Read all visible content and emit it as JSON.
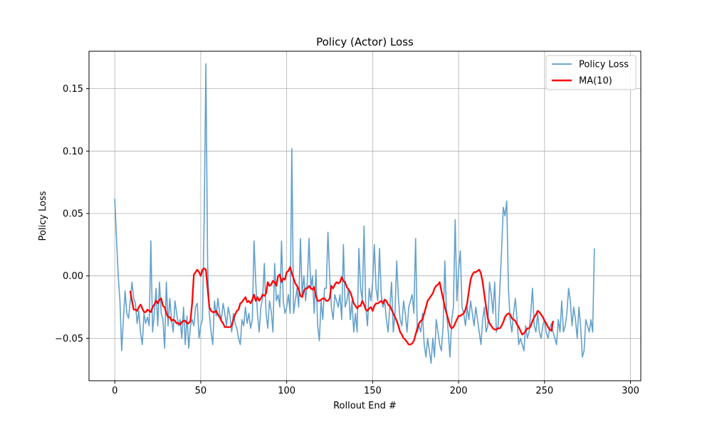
{
  "chart_data": {
    "type": "line",
    "title": "Policy (Actor) Loss",
    "xlabel": "Rollout End #",
    "ylabel": "Policy Loss",
    "xlim": [
      -15,
      306
    ],
    "ylim": [
      -0.084,
      0.18
    ],
    "xticks": [
      0,
      50,
      100,
      150,
      200,
      250,
      300
    ],
    "xtick_labels": [
      "0",
      "50",
      "100",
      "150",
      "200",
      "250",
      "300"
    ],
    "yticks": [
      -0.05,
      0.0,
      0.05,
      0.1,
      0.15
    ],
    "ytick_labels": [
      "−0.05",
      "0.00",
      "0.05",
      "0.10",
      "0.15"
    ],
    "grid": true,
    "legend_position": "top-right",
    "series": [
      {
        "name": "Policy Loss",
        "color": "#5b9bc9",
        "x_start": 0,
        "x_step": 1,
        "values": [
          0.062,
          0.03,
          0.0,
          -0.02,
          -0.06,
          -0.035,
          -0.012,
          -0.03,
          -0.034,
          -0.02,
          -0.005,
          -0.018,
          -0.022,
          -0.038,
          -0.028,
          -0.046,
          -0.055,
          -0.03,
          -0.038,
          -0.033,
          -0.04,
          0.028,
          -0.045,
          -0.03,
          -0.01,
          -0.04,
          -0.005,
          -0.03,
          -0.035,
          -0.058,
          -0.005,
          -0.04,
          -0.018,
          -0.035,
          -0.045,
          -0.02,
          -0.03,
          -0.04,
          -0.035,
          -0.05,
          -0.025,
          -0.055,
          -0.032,
          -0.058,
          -0.04,
          -0.035,
          -0.04,
          -0.025,
          -0.022,
          -0.05,
          -0.04,
          -0.035,
          0.045,
          0.17,
          0.01,
          -0.03,
          -0.045,
          -0.055,
          -0.02,
          -0.032,
          -0.018,
          -0.03,
          -0.035,
          -0.022,
          -0.03,
          -0.04,
          -0.025,
          -0.032,
          -0.045,
          -0.03,
          -0.038,
          -0.042,
          -0.05,
          -0.055,
          -0.035,
          -0.04,
          -0.025,
          -0.038,
          -0.03,
          -0.042,
          -0.035,
          0.028,
          -0.005,
          -0.03,
          -0.045,
          -0.025,
          -0.018,
          0.01,
          -0.03,
          -0.042,
          -0.02,
          -0.028,
          -0.045,
          0.01,
          -0.02,
          -0.015,
          -0.025,
          0.028,
          -0.02,
          -0.03,
          -0.025,
          -0.015,
          -0.03,
          0.102,
          -0.03,
          -0.02,
          -0.01,
          -0.025,
          0.03,
          -0.015,
          0.0,
          -0.02,
          -0.005,
          0.03,
          -0.01,
          0.0,
          -0.03,
          0.005,
          -0.04,
          -0.052,
          -0.02,
          -0.035,
          -0.01,
          -0.01,
          0.035,
          0.0,
          -0.025,
          -0.035,
          -0.015,
          -0.02,
          -0.025,
          -0.015,
          -0.035,
          0.025,
          -0.025,
          -0.02,
          -0.01,
          -0.035,
          -0.02,
          -0.045,
          -0.03,
          -0.045,
          0.022,
          -0.01,
          -0.02,
          0.04,
          -0.025,
          -0.04,
          -0.01,
          -0.02,
          -0.005,
          0.025,
          -0.01,
          -0.02,
          0.022,
          -0.015,
          -0.025,
          -0.02,
          -0.035,
          -0.045,
          -0.025,
          -0.005,
          -0.045,
          -0.03,
          0.012,
          -0.018,
          -0.035,
          -0.04,
          -0.02,
          -0.03,
          -0.045,
          -0.025,
          -0.02,
          -0.015,
          -0.03,
          0.03,
          -0.045,
          -0.04,
          -0.045,
          -0.03,
          -0.055,
          -0.065,
          -0.05,
          -0.06,
          -0.07,
          -0.05,
          -0.065,
          -0.035,
          -0.045,
          -0.055,
          -0.06,
          -0.04,
          0.012,
          -0.03,
          -0.045,
          -0.065,
          -0.035,
          -0.025,
          0.045,
          -0.02,
          0.005,
          0.02,
          -0.025,
          -0.03,
          -0.04,
          -0.025,
          -0.035,
          -0.02,
          -0.03,
          -0.04,
          -0.025,
          -0.035,
          -0.045,
          -0.055,
          -0.035,
          -0.025,
          -0.045,
          -0.04,
          -0.005,
          -0.015,
          -0.03,
          -0.005,
          -0.045,
          -0.04,
          -0.01,
          0.02,
          0.055,
          0.048,
          0.06,
          -0.01,
          -0.035,
          -0.045,
          -0.03,
          -0.018,
          -0.035,
          -0.055,
          -0.05,
          -0.055,
          -0.06,
          -0.04,
          -0.05,
          -0.045,
          -0.03,
          -0.01,
          -0.04,
          -0.045,
          -0.03,
          -0.045,
          -0.05,
          -0.04,
          -0.035,
          -0.045,
          -0.05,
          -0.042,
          -0.038,
          -0.045,
          -0.05,
          -0.055,
          -0.035,
          -0.045,
          -0.02,
          -0.045,
          -0.04,
          -0.03,
          -0.01,
          -0.02,
          -0.04,
          -0.025,
          -0.035,
          -0.05,
          -0.025,
          -0.04,
          -0.065,
          -0.06,
          -0.035,
          -0.04,
          -0.045,
          -0.035,
          -0.045,
          0.022
        ]
      },
      {
        "name": "MA(10)",
        "color": "#ff0000",
        "x_start": 9,
        "x_step": 1,
        "values": [
          -0.012,
          -0.02,
          -0.027,
          -0.027,
          -0.028,
          -0.025,
          -0.023,
          -0.026,
          -0.029,
          -0.029,
          -0.027,
          -0.028,
          -0.029,
          -0.025,
          -0.023,
          -0.02,
          -0.022,
          -0.019,
          -0.018,
          -0.024,
          -0.025,
          -0.03,
          -0.033,
          -0.033,
          -0.036,
          -0.035,
          -0.036,
          -0.038,
          -0.038,
          -0.039,
          -0.037,
          -0.036,
          -0.036,
          -0.038,
          -0.038,
          -0.036,
          -0.022,
          0.001,
          0.003,
          0.005,
          0.003,
          0.0,
          0.005,
          0.006,
          0.005,
          -0.01,
          -0.025,
          -0.028,
          -0.029,
          -0.029,
          -0.028,
          -0.031,
          -0.033,
          -0.036,
          -0.038,
          -0.041,
          -0.041,
          -0.041,
          -0.041,
          -0.04,
          -0.035,
          -0.031,
          -0.028,
          -0.027,
          -0.022,
          -0.021,
          -0.019,
          -0.017,
          -0.021,
          -0.02,
          -0.022,
          -0.019,
          -0.015,
          -0.02,
          -0.017,
          -0.02,
          -0.018,
          -0.015,
          -0.016,
          -0.014,
          -0.005,
          -0.008,
          -0.007,
          -0.004,
          -0.005,
          -0.008,
          0.0,
          0.001,
          -0.005,
          -0.002,
          -0.003,
          0.003,
          0.004,
          0.007,
          0.002,
          -0.002,
          -0.006,
          -0.008,
          -0.011,
          -0.016,
          -0.017,
          -0.012,
          -0.01,
          -0.01,
          -0.008,
          -0.01,
          -0.011,
          -0.009,
          -0.016,
          -0.02,
          -0.02,
          -0.019,
          -0.018,
          -0.018,
          -0.02,
          -0.02,
          -0.018,
          -0.008,
          -0.01,
          -0.007,
          -0.005,
          -0.006,
          -0.005,
          -0.001,
          -0.004,
          -0.005,
          -0.009,
          -0.011,
          -0.013,
          -0.017,
          -0.022,
          -0.024,
          -0.026,
          -0.024,
          -0.024,
          -0.02,
          -0.023,
          -0.027,
          -0.028,
          -0.026,
          -0.025,
          -0.028,
          -0.024,
          -0.022,
          -0.022,
          -0.021,
          -0.02,
          -0.022,
          -0.019,
          -0.02,
          -0.023,
          -0.024,
          -0.027,
          -0.03,
          -0.033,
          -0.036,
          -0.04,
          -0.045,
          -0.047,
          -0.05,
          -0.051,
          -0.053,
          -0.055,
          -0.055,
          -0.054,
          -0.052,
          -0.047,
          -0.042,
          -0.038,
          -0.036,
          -0.035,
          -0.03,
          -0.025,
          -0.02,
          -0.018,
          -0.016,
          -0.014,
          -0.01,
          -0.008,
          -0.007,
          -0.005,
          -0.012,
          -0.018,
          -0.025,
          -0.03,
          -0.035,
          -0.04,
          -0.042,
          -0.041,
          -0.038,
          -0.035,
          -0.032,
          -0.032,
          -0.031,
          -0.03,
          -0.027,
          -0.022,
          -0.012,
          -0.003,
          0.001,
          0.003,
          0.003,
          0.004,
          0.005,
          0.002,
          -0.005,
          -0.015,
          -0.025,
          -0.034,
          -0.038,
          -0.04,
          -0.042,
          -0.043,
          -0.043,
          -0.042,
          -0.042,
          -0.04,
          -0.037,
          -0.033,
          -0.031,
          -0.03,
          -0.031,
          -0.034,
          -0.035,
          -0.036,
          -0.039,
          -0.041,
          -0.044,
          -0.047,
          -0.046,
          -0.044,
          -0.042,
          -0.042,
          -0.04,
          -0.036,
          -0.033,
          -0.031,
          -0.028,
          -0.029,
          -0.031,
          -0.033,
          -0.036,
          -0.038,
          -0.041,
          -0.043,
          -0.044,
          -0.036
        ]
      }
    ]
  }
}
